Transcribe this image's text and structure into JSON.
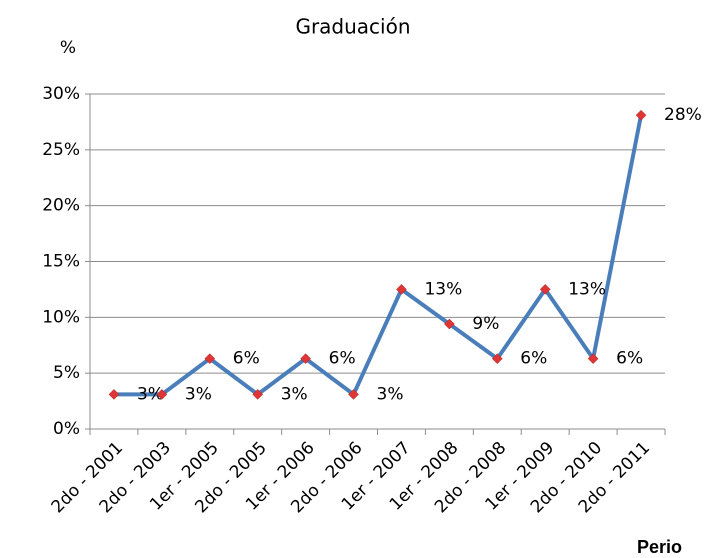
{
  "chart_data": {
    "type": "line",
    "title": "Graduación",
    "y_label": "%",
    "x_label": "Perio",
    "categories": [
      "2do - 2001",
      "2do - 2003",
      "1er - 2005",
      "2do - 2005",
      "1er - 2006",
      "2do - 2006",
      "1er - 2007",
      "1er - 2008",
      "2do - 2008",
      "1er - 2009",
      "2do - 2010",
      "2do - 2011"
    ],
    "values": [
      3.1,
      3.1,
      6.3,
      3.1,
      6.3,
      3.1,
      12.5,
      9.4,
      6.3,
      12.5,
      6.3,
      28.1
    ],
    "value_labels": [
      "3%",
      "3%",
      "6%",
      "3%",
      "6%",
      "3%",
      "13%",
      "9%",
      "6%",
      "13%",
      "6%",
      "28%"
    ],
    "color": "#4a7ebb",
    "marker_color": "#e03535",
    "ylim": [
      0,
      30
    ],
    "yticks": [
      {
        "value": 0,
        "label": "0%"
      },
      {
        "value": 5,
        "label": "5%"
      },
      {
        "value": 10,
        "label": "10%"
      },
      {
        "value": 15,
        "label": "15%"
      },
      {
        "value": 20,
        "label": "20%"
      },
      {
        "value": 25,
        "label": "25%"
      },
      {
        "value": 30,
        "label": "30%"
      }
    ],
    "grid": true
  }
}
